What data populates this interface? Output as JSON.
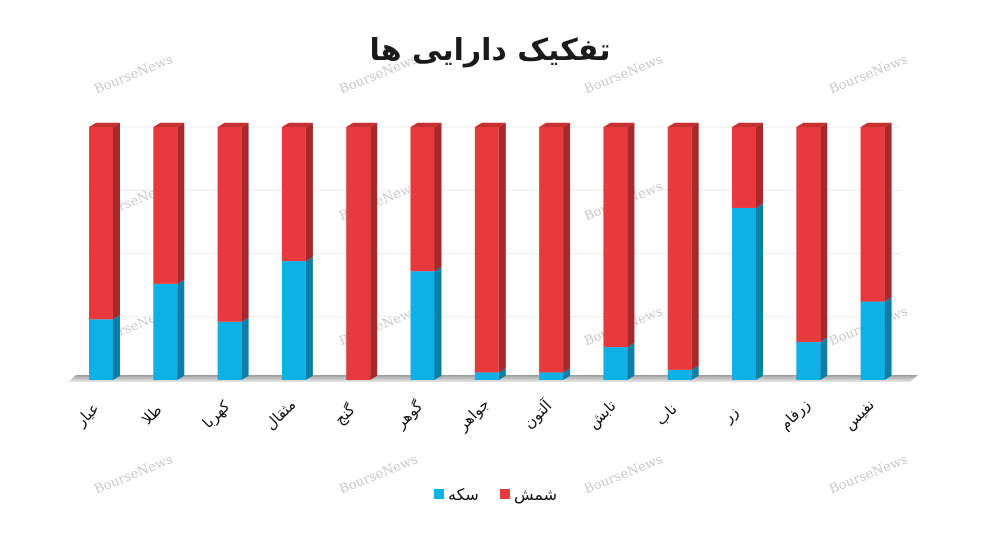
{
  "watermark": "BourseNews",
  "chart_data": {
    "type": "bar",
    "stacked": true,
    "percent_stacked": true,
    "title": "تفکیک دارایی ها",
    "categories": [
      "عیار",
      "طلا",
      "کهربا",
      "مثقال",
      "گنج",
      "گوهر",
      "جواهر",
      "آلتون",
      "تابش",
      "ناب",
      "زر",
      "زرفام",
      "نفیس"
    ],
    "series": [
      {
        "name": "سکه",
        "color": "#0fb0e6",
        "values": [
          24,
          38,
          23,
          47,
          0,
          43,
          3,
          3,
          13,
          4,
          68,
          15,
          31
        ]
      },
      {
        "name": "شمش",
        "color": "#e8393c",
        "values": [
          76,
          62,
          77,
          53,
          100,
          57,
          97,
          97,
          87,
          96,
          32,
          85,
          69
        ]
      }
    ],
    "ylim": [
      0,
      100
    ],
    "grid": true,
    "legend_position": "bottom"
  }
}
